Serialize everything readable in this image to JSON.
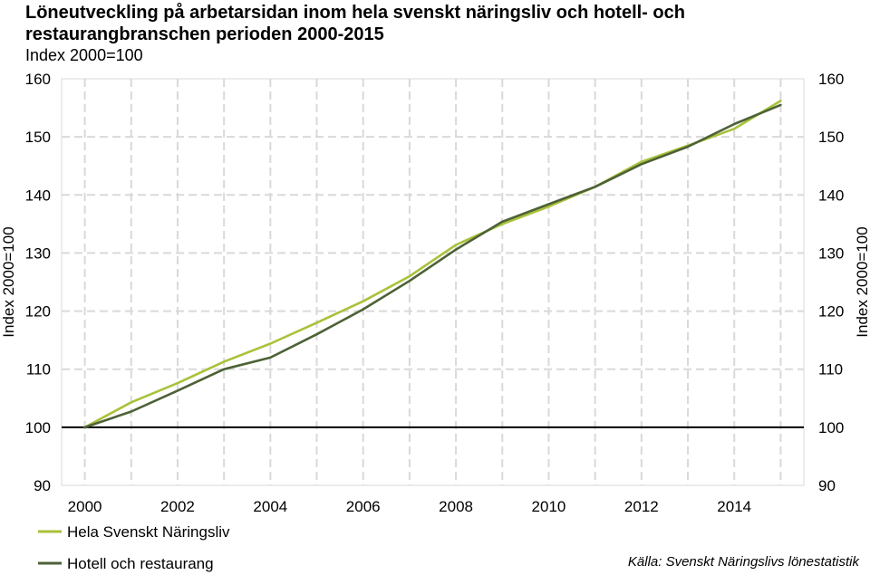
{
  "title": "Löneutveckling på arbetarsidan inom hela svenskt näringsliv och hotell- och restaurangbranschen perioden 2000-2015",
  "subtitle": "Index 2000=100",
  "source": "Källa: Svenskt Näringslivs lönestatistik",
  "colors": {
    "series1": "#a9c23a",
    "series2": "#4d6137",
    "grid": "#d9d9d9",
    "baseline": "#000000"
  },
  "chart_data": {
    "type": "line",
    "x": [
      2000,
      2001,
      2002,
      2003,
      2004,
      2005,
      2006,
      2007,
      2008,
      2009,
      2010,
      2011,
      2012,
      2013,
      2014,
      2015
    ],
    "xticks": [
      2000,
      2002,
      2004,
      2006,
      2008,
      2010,
      2012,
      2014
    ],
    "xtick_labels": [
      "2000",
      "2002",
      "2004",
      "2006",
      "2008",
      "2010",
      "2012",
      "2014"
    ],
    "xlim": [
      1999.5,
      2015.5
    ],
    "ylim": [
      90,
      160
    ],
    "yticks": [
      90,
      100,
      110,
      120,
      130,
      140,
      150,
      160
    ],
    "ytick_labels": [
      "90",
      "100",
      "110",
      "120",
      "130",
      "140",
      "150",
      "160"
    ],
    "ylabel_left": "Index 2000=100",
    "ylabel_right": "Index 2000=100",
    "baseline": 100,
    "grid": true,
    "legend_position": "bottom-left",
    "series": [
      {
        "name": "Hela Svenskt Näringsliv",
        "color": "#a9c23a",
        "values": [
          100,
          104.3,
          107.6,
          111.3,
          114.4,
          118.0,
          121.7,
          126.0,
          131.4,
          135.0,
          138.0,
          141.4,
          145.7,
          148.5,
          151.4,
          156.2
        ]
      },
      {
        "name": "Hotell och restaurang",
        "color": "#4d6137",
        "values": [
          100,
          102.7,
          106.3,
          110.0,
          112.0,
          116.0,
          120.3,
          125.2,
          130.6,
          135.4,
          138.4,
          141.4,
          145.3,
          148.3,
          152.2,
          155.5
        ]
      }
    ]
  }
}
